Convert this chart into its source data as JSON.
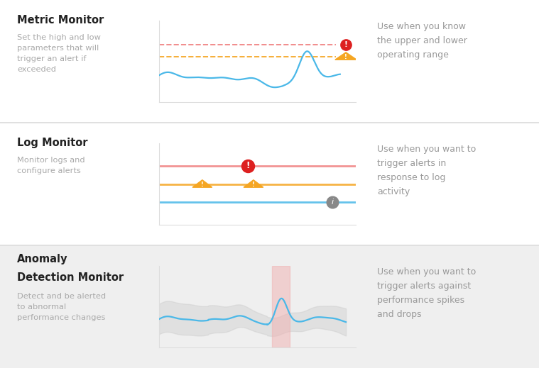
{
  "bg_color": "#ffffff",
  "divider_color": "#e0e0e0",
  "title_color": "#222222",
  "subtitle_color": "#aaaaaa",
  "desc_color": "#999999",
  "sections": [
    {
      "title": "Metric Monitor",
      "subtitle": "Set the high and low\nparameters that will\ntrigger an alert if\nexceeded",
      "desc": "Use when you know\nthe upper and lower\noperating range",
      "bg": "#ffffff"
    },
    {
      "title": "Log Monitor",
      "subtitle": "Monitor logs and\nconfigure alerts",
      "desc": "Use when you want to\ntrigger alerts in\nresponse to log\nactivity",
      "bg": "#ffffff"
    },
    {
      "title": "Anomaly\nDetection Monitor",
      "subtitle": "Detect and be alerted\nto abnormal\nperformance changes",
      "desc": "Use when you want to\ntrigger alerts against\nperformance spikes\nand drops",
      "bg": "#efefef"
    }
  ],
  "chart_line_color": "#4ab8e8",
  "red_dashed_color": "#f08080",
  "orange_dashed_color": "#f5a623",
  "red_solid_color": "#f08080",
  "orange_solid_color": "#f5a623",
  "blue_solid_color": "#4ab8e8",
  "anomaly_band_color": "#c8c8c8",
  "anomaly_spike_color": "#f0b0b0",
  "icon_red_color": "#dd2020",
  "icon_orange_color": "#f5a623",
  "icon_gray_color": "#888888"
}
